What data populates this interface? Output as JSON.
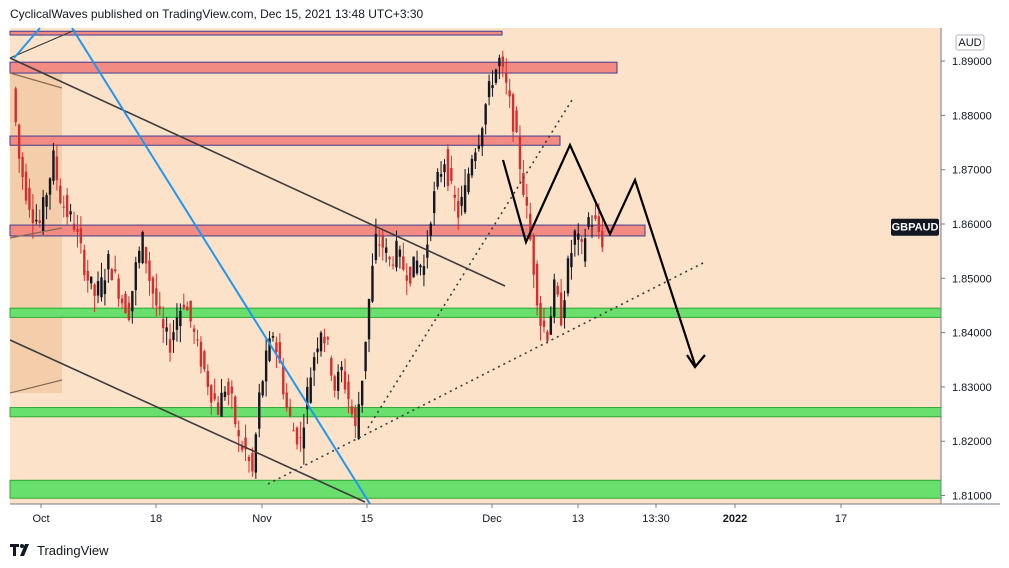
{
  "header": {
    "attribution": "CyclicalWaves published on TradingView.com, Dec 15, 2021 13:48 UTC+3:30"
  },
  "footer": {
    "brand": "TradingView",
    "logo_icon": "tradingview-logo-icon"
  },
  "colors": {
    "background": "#fbe2c8",
    "resistance_zone": "#f28b82",
    "support_zone": "#69e06d",
    "up_candle": "#131722",
    "down_candle": "#d32f2f",
    "trendline_blue": "#2196f3",
    "channel_line": "#3c3c3c"
  },
  "chart_data": {
    "type": "candlestick",
    "symbol_badge": "GBPAUD",
    "currency": "AUD",
    "y_ticks": [
      "1.81000",
      "1.82000",
      "1.83000",
      "1.84000",
      "1.85000",
      "1.86000",
      "1.87000",
      "1.88000",
      "1.89000"
    ],
    "x_ticks": [
      {
        "label": "Oct",
        "bold": false
      },
      {
        "label": "18",
        "bold": false
      },
      {
        "label": "Nov",
        "bold": false
      },
      {
        "label": "15",
        "bold": false
      },
      {
        "label": "Dec",
        "bold": false
      },
      {
        "label": "13",
        "bold": false
      },
      {
        "label": "13:30",
        "bold": false
      },
      {
        "label": "2022",
        "bold": true
      },
      {
        "label": "17",
        "bold": false
      }
    ],
    "ylim": [
      1.8065,
      1.8955
    ],
    "last_price": 1.8595,
    "zones": [
      {
        "kind": "resistance",
        "from": 1.8955,
        "to": 1.8948
      },
      {
        "kind": "resistance",
        "from": 1.8878,
        "to": 1.8898
      },
      {
        "kind": "resistance",
        "from": 1.8745,
        "to": 1.8762
      },
      {
        "kind": "resistance",
        "from": 1.8578,
        "to": 1.8598
      },
      {
        "kind": "support",
        "from": 1.8428,
        "to": 1.8445
      },
      {
        "kind": "support",
        "from": 1.8245,
        "to": 1.8262
      },
      {
        "kind": "support",
        "from": 1.8095,
        "to": 1.8128
      }
    ],
    "price_path": [
      1.885,
      1.872,
      1.866,
      1.862,
      1.86,
      1.866,
      1.872,
      1.865,
      1.862,
      1.86,
      1.855,
      1.85,
      1.847,
      1.849,
      1.853,
      1.85,
      1.846,
      1.844,
      1.852,
      1.857,
      1.85,
      1.845,
      1.84,
      1.838,
      1.843,
      1.846,
      1.842,
      1.837,
      1.833,
      1.829,
      1.826,
      1.83,
      1.827,
      1.82,
      1.818,
      1.814,
      1.828,
      1.835,
      1.84,
      1.834,
      1.826,
      1.822,
      1.82,
      1.829,
      1.836,
      1.841,
      1.837,
      1.83,
      1.833,
      1.828,
      1.822,
      1.832,
      1.846,
      1.857,
      1.856,
      1.853,
      1.855,
      1.852,
      1.851,
      1.853,
      1.852,
      1.862,
      1.868,
      1.872,
      1.866,
      1.862,
      1.866,
      1.873,
      1.876,
      1.882,
      1.887,
      1.89,
      1.885,
      1.879,
      1.871,
      1.862,
      1.852,
      1.842,
      1.84,
      1.848,
      1.843,
      1.852,
      1.858,
      1.855,
      1.861,
      1.86,
      1.857
    ]
  }
}
